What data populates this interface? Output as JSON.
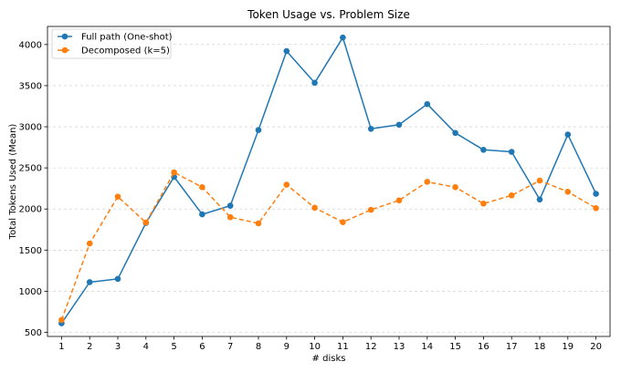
{
  "chart_data": {
    "type": "line",
    "title": "Token Usage vs. Problem Size",
    "xlabel": "# disks",
    "ylabel": "Total Tokens Used (Mean)",
    "x": [
      1,
      2,
      3,
      4,
      5,
      6,
      7,
      8,
      9,
      10,
      11,
      12,
      13,
      14,
      15,
      16,
      17,
      18,
      19,
      20
    ],
    "xlim": [
      0.5,
      20.5
    ],
    "ylim": [
      450,
      4220
    ],
    "yticks": [
      500,
      1000,
      1500,
      2000,
      2500,
      3000,
      3500,
      4000
    ],
    "grid": "y-dashed",
    "legend_position": "top-left",
    "series": [
      {
        "name": "Full path (One-shot)",
        "color": "#1f77b4",
        "linestyle": "solid",
        "values": [
          610,
          1110,
          1150,
          1830,
          2390,
          1935,
          2040,
          2960,
          3920,
          3535,
          4085,
          2975,
          3025,
          3275,
          2925,
          2720,
          2695,
          2115,
          2905,
          2185
        ]
      },
      {
        "name": "Decomposed (k=5)",
        "color": "#ff7f0e",
        "linestyle": "dashed",
        "values": [
          650,
          1580,
          2150,
          1835,
          2445,
          2265,
          1900,
          1825,
          2295,
          2015,
          1840,
          1990,
          2105,
          2330,
          2265,
          2065,
          2165,
          2345,
          2210,
          2010
        ]
      }
    ]
  }
}
